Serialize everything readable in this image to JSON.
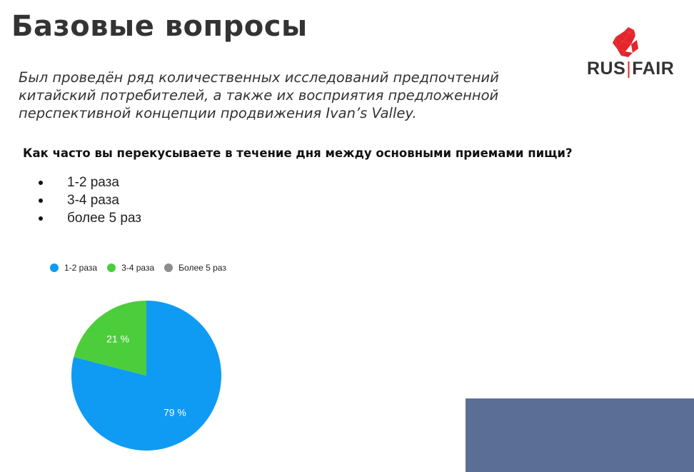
{
  "slide": {
    "title": "Базовые вопросы",
    "intro": "Был проведён ряд количественных исследований предпочтений китайский потребителей, а также их восприятия предложенной перспективной концепции продвижения Ivan’s Valley.",
    "question": "Как часто вы перекусываете в течение дня между основными приемами пищи?",
    "options": [
      "1-2 раза",
      "3-4 раза",
      "более 5 раз"
    ]
  },
  "logo": {
    "left": "RUS",
    "right": "FAIR",
    "icon": "rooster-icon",
    "accent": "#e4252b"
  },
  "chart_data": {
    "type": "pie",
    "categories": [
      "1-2 раза",
      "3-4 раза",
      "Более 5 раз"
    ],
    "values": [
      79,
      21,
      0
    ],
    "labels": [
      "79 %",
      "21 %",
      ""
    ],
    "colors": [
      "#0f9bf3",
      "#4ccd3b",
      "#8e8e8e"
    ],
    "legend_position": "top-left"
  },
  "colors": {
    "block": "#5b6e96",
    "title": "#333333"
  }
}
